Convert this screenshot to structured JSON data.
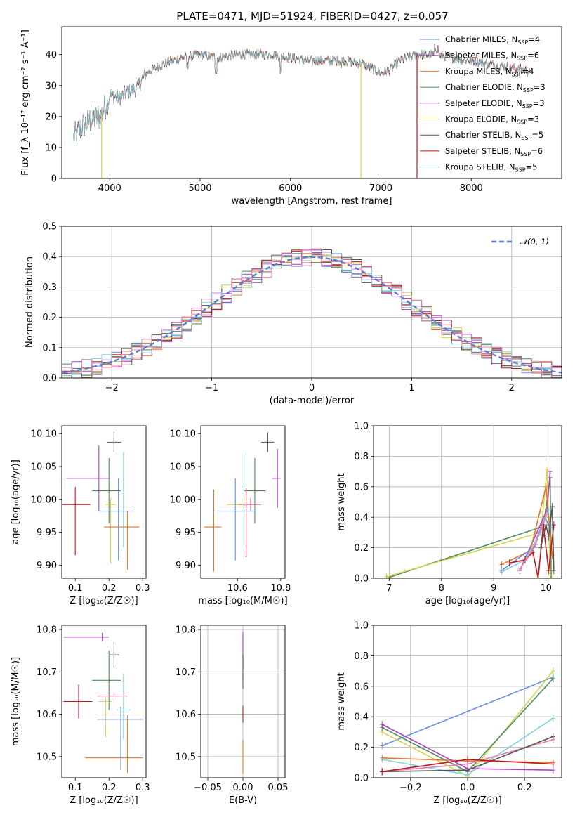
{
  "figure": {
    "title": "PLATE=0471, MJD=51924, FIBERID=0427, z=0.057"
  },
  "colors": {
    "Chabrier MILES": "#6a8fdc",
    "Salpeter MILES": "#9b59b6",
    "Kroupa MILES": "#e07b28",
    "Chabrier ELODIE": "#4f8a5f",
    "Salpeter ELODIE": "#b23ec2",
    "Kroupa ELODIE": "#d7d44a",
    "Chabrier STELIB": "#555555",
    "Salpeter STELIB": "#c0161d",
    "Kroupa STELIB": "#7fd3dc",
    "gauss": "#5b7fd6",
    "pink": "#e87fb3"
  },
  "chart_data": [
    {
      "id": "spectrum",
      "type": "line",
      "title": "PLATE=0471, MJD=51924, FIBERID=0427, z=0.057",
      "xlabel": "wavelength [Angstrom, rest frame]",
      "ylabel": "Flux [f_λ 10⁻¹⁷ erg cm⁻² s⁻¹ A⁻¹]",
      "xlim": [
        3470,
        9000
      ],
      "ylim": [
        0,
        49
      ],
      "xticks": [
        "4000",
        "5000",
        "6000",
        "7000",
        "8000"
      ],
      "yticks": [
        "0",
        "10",
        "20",
        "30",
        "40"
      ],
      "grid": false,
      "legend_position": "top-right",
      "legend": [
        {
          "name": "Chabrier MILES, N",
          "sub": "SSP",
          "suffix": "=4"
        },
        {
          "name": "Salpeter MILES, N",
          "sub": "SSP",
          "suffix": "=6"
        },
        {
          "name": "Kroupa MILES, N",
          "sub": "SSP",
          "suffix": "=4"
        },
        {
          "name": "Chabrier ELODIE, N",
          "sub": "SSP",
          "suffix": "=3"
        },
        {
          "name": "Salpeter ELODIE, N",
          "sub": "SSP",
          "suffix": "=3"
        },
        {
          "name": "Kroupa ELODIE, N",
          "sub": "SSP",
          "suffix": "=3"
        },
        {
          "name": "Chabrier STELIB, N",
          "sub": "SSP",
          "suffix": "=5"
        },
        {
          "name": "Salpeter STELIB, N",
          "sub": "SSP",
          "suffix": "=6"
        },
        {
          "name": "Kroupa STELIB, N",
          "sub": "SSP",
          "suffix": "=5"
        }
      ],
      "continuum": {
        "x": [
          3600,
          3700,
          3800,
          3900,
          4000,
          4100,
          4200,
          4300,
          4400,
          4600,
          4800,
          5000,
          5200,
          5400,
          5600,
          5800,
          6000,
          6200,
          6400,
          6600,
          6800,
          7000,
          7100,
          7200,
          7400,
          7600,
          7800,
          8000,
          8200,
          8400,
          8600,
          8700
        ],
        "y": [
          13,
          17,
          19,
          20,
          27,
          26,
          28,
          29,
          34,
          37,
          39,
          40,
          39,
          40,
          40,
          40,
          39,
          38,
          38,
          38,
          37,
          34,
          35,
          38,
          40,
          40,
          39,
          38,
          37,
          36,
          35,
          33
        ]
      },
      "spectra_end": [
        4,
        3,
        8,
        4,
        8,
        8,
        3,
        8,
        3
      ],
      "drops": [
        {
          "x": 3910,
          "series": "Kroupa ELODIE"
        },
        {
          "x": 6780,
          "series": "Kroupa ELODIE"
        },
        {
          "x": 7400,
          "series": "Salpeter STELIB"
        }
      ]
    },
    {
      "id": "residuals",
      "type": "step",
      "xlabel": "(data-model)/error",
      "ylabel": "Normed distribution",
      "xlim": [
        -2.5,
        2.5
      ],
      "ylim": [
        0,
        0.5
      ],
      "xticks": [
        "−2",
        "−1",
        "0",
        "1",
        "2"
      ],
      "yticks": [
        "0.0",
        "0.1",
        "0.2",
        "0.3",
        "0.4",
        "0.5"
      ],
      "grid": true,
      "bin_width": 0.1,
      "legend_position": "top-right",
      "legend": [
        {
          "name": "𝒩(0, 1)"
        }
      ],
      "gaussian": {
        "mu": 0,
        "sigma": 1
      }
    },
    {
      "id": "age-vs-Z",
      "type": "errorbar",
      "xlabel": "Z [log₁₀(Z/Z☉)]",
      "ylabel": "age  [log₁₀(age/yr)]",
      "xlim": [
        0.06,
        0.31
      ],
      "ylim": [
        9.88,
        10.112
      ],
      "xticks": [
        "0.1",
        "0.2",
        "0.3"
      ],
      "yticks": [
        "9.90",
        "9.95",
        "10.00",
        "10.05",
        "10.10"
      ],
      "grid": false,
      "points": [
        {
          "series": "Chabrier STELIB",
          "x": 0.215,
          "y": 10.087,
          "xerr": [
            0.022,
            0.022
          ],
          "yerr": [
            0.015,
            0.015
          ]
        },
        {
          "series": "Salpeter ELODIE",
          "x": 0.17,
          "y": 10.032,
          "xerr": [
            0.097,
            0.033
          ],
          "yerr": [
            0.05,
            0.05
          ]
        },
        {
          "series": "Chabrier ELODIE",
          "x": 0.2,
          "y": 10.013,
          "xerr": [
            0.05,
            0.035
          ],
          "yerr": [
            0.05,
            0.05
          ]
        },
        {
          "series": "Salpeter STELIB",
          "x": 0.1,
          "y": 9.992,
          "xerr": [
            0.04,
            0.045
          ],
          "yerr": [
            0.077,
            0.027
          ]
        },
        {
          "series": "Kroupa ELODIE",
          "x": 0.205,
          "y": 9.992,
          "xerr": [
            0.015,
            0.015
          ],
          "yerr": [
            0.09,
            0.01
          ]
        },
        {
          "series": "Kroupa STELIB",
          "x": 0.243,
          "y": 9.982,
          "xerr": [
            0.03,
            0.02
          ],
          "yerr": [
            0.055,
            0.09
          ]
        },
        {
          "series": "Chabrier MILES",
          "x": 0.228,
          "y": 9.982,
          "xerr": [
            0.06,
            0.045
          ],
          "yerr": [
            0.075,
            0.05
          ]
        },
        {
          "series": "Kroupa MILES",
          "x": 0.255,
          "y": 9.958,
          "xerr": [
            0.07,
            0.035
          ],
          "yerr": [
            0.065,
            0.025
          ]
        }
      ]
    },
    {
      "id": "age-vs-mass",
      "type": "errorbar",
      "xlabel": "mass [log₁₀(M/M☉)]",
      "ylabel": "",
      "xlim": [
        10.43,
        10.82
      ],
      "ylim": [
        9.88,
        10.112
      ],
      "xticks": [
        "10.6",
        "10.8"
      ],
      "yticks": [
        "9.90",
        "9.95",
        "10.00",
        "10.05",
        "10.10"
      ],
      "grid": false,
      "points": [
        {
          "series": "Chabrier STELIB",
          "x": 10.74,
          "y": 10.087,
          "xerr": [
            0.03,
            0.03
          ],
          "yerr": [
            0.015,
            0.015
          ]
        },
        {
          "series": "Salpeter ELODIE",
          "x": 10.785,
          "y": 10.032,
          "xerr": [
            0.025,
            0.015
          ],
          "yerr": [
            0.045,
            0.045
          ]
        },
        {
          "series": "Chabrier ELODIE",
          "x": 10.68,
          "y": 10.013,
          "xerr": [
            0.05,
            0.05
          ],
          "yerr": [
            0.05,
            0.05
          ]
        },
        {
          "series": "Salpeter STELIB",
          "x": 10.64,
          "y": 9.992,
          "xerr": [
            0.04,
            0.04
          ],
          "yerr": [
            0.08,
            0.025
          ]
        },
        {
          "series": "Kroupa ELODIE",
          "x": 10.62,
          "y": 9.992,
          "xerr": [
            0.07,
            0.07
          ],
          "yerr": [
            0.01,
            0.01
          ]
        },
        {
          "series": "pink",
          "x": 10.66,
          "y": 9.992,
          "xerr": [
            0.05,
            0.05
          ],
          "yerr": [
            0.01,
            0.01
          ]
        },
        {
          "series": "Kroupa STELIB",
          "x": 10.63,
          "y": 9.982,
          "xerr": [
            0.05,
            0.05
          ],
          "yerr": [
            0.055,
            0.09
          ]
        },
        {
          "series": "Chabrier MILES",
          "x": 10.59,
          "y": 9.982,
          "xerr": [
            0.085,
            0.085
          ],
          "yerr": [
            0.075,
            0.05
          ]
        },
        {
          "series": "Kroupa MILES",
          "x": 10.49,
          "y": 9.958,
          "xerr": [
            0.045,
            0.035
          ],
          "yerr": [
            0.068,
            0.057
          ]
        }
      ]
    },
    {
      "id": "weight-vs-age",
      "type": "line",
      "xlabel": "age  [log₁₀(age/yr)]",
      "ylabel": "mass weight",
      "xlim": [
        6.7,
        10.3
      ],
      "ylim": [
        0,
        1
      ],
      "xticks": [
        "7",
        "8",
        "9",
        "10"
      ],
      "yticks": [
        "0.0",
        "0.2",
        "0.4",
        "0.6",
        "0.8",
        "1.0"
      ],
      "grid": true,
      "series": [
        {
          "name": "Chabrier ELODIE",
          "x": [
            6.95,
            9.95,
            10.08,
            10.1
          ],
          "y": [
            0.0,
            0.34,
            0.66,
            0.0
          ]
        },
        {
          "name": "Kroupa ELODIE",
          "x": [
            6.95,
            9.9,
            10.02,
            10.08
          ],
          "y": [
            0.01,
            0.3,
            0.71,
            0.02
          ]
        },
        {
          "name": "Salpeter ELODIE",
          "x": [
            9.5,
            10.02,
            10.08
          ],
          "y": [
            0.05,
            0.45,
            0.7
          ]
        },
        {
          "name": "Kroupa MILES",
          "x": [
            9.15,
            9.7,
            10.0,
            10.12
          ],
          "y": [
            0.09,
            0.18,
            0.6,
            0.15
          ]
        },
        {
          "name": "Chabrier MILES",
          "x": [
            9.15,
            9.75,
            9.98,
            10.08
          ],
          "y": [
            0.05,
            0.2,
            0.4,
            0.33
          ]
        },
        {
          "name": "Kroupa STELIB",
          "x": [
            9.15,
            9.6,
            9.9,
            10.05
          ],
          "y": [
            0.04,
            0.12,
            0.3,
            0.45
          ]
        },
        {
          "name": "Salpeter STELIB",
          "x": [
            9.3,
            9.6,
            9.75,
            9.85,
            9.95,
            10.05,
            10.15
          ],
          "y": [
            0.1,
            0.12,
            0.17,
            0.0,
            0.35,
            0.05,
            0.35
          ]
        },
        {
          "name": "Chabrier STELIB",
          "x": [
            9.9,
            10.0,
            10.05,
            10.12,
            10.15
          ],
          "y": [
            0.2,
            0.35,
            0.27,
            0.47,
            0.05
          ]
        },
        {
          "name": "pink",
          "x": [
            9.5,
            9.8,
            10.0
          ],
          "y": [
            0.06,
            0.22,
            0.42
          ]
        }
      ]
    },
    {
      "id": "mass-vs-Z",
      "type": "errorbar",
      "xlabel": "Z [log₁₀(Z/Z☉)]",
      "ylabel": "mass [log₁₀(M/M☉)]",
      "xlim": [
        0.06,
        0.31
      ],
      "ylim": [
        10.45,
        10.81
      ],
      "xticks": [
        "0.1",
        "0.2",
        "0.3"
      ],
      "yticks": [
        "10.5",
        "10.6",
        "10.7",
        "10.8"
      ],
      "grid": false,
      "points": [
        {
          "series": "Salpeter ELODIE",
          "x": 0.18,
          "y": 10.782,
          "xerr": [
            0.115,
            0.02
          ],
          "yerr": [
            0.01,
            0.01
          ]
        },
        {
          "series": "Chabrier STELIB",
          "x": 0.215,
          "y": 10.74,
          "xerr": [
            0.015,
            0.015
          ],
          "yerr": [
            0.03,
            0.03
          ]
        },
        {
          "series": "Chabrier ELODIE",
          "x": 0.2,
          "y": 10.68,
          "xerr": [
            0.05,
            0.035
          ],
          "yerr": [
            0.07,
            0.07
          ]
        },
        {
          "series": "pink",
          "x": 0.215,
          "y": 10.643,
          "xerr": [
            0.05,
            0.04
          ],
          "yerr": [
            0.01,
            0.01
          ]
        },
        {
          "series": "Salpeter STELIB",
          "x": 0.11,
          "y": 10.63,
          "xerr": [
            0.045,
            0.04
          ],
          "yerr": [
            0.04,
            0.04
          ]
        },
        {
          "series": "Kroupa ELODIE",
          "x": 0.19,
          "y": 10.63,
          "xerr": [
            0.02,
            0.02
          ],
          "yerr": [
            0.085,
            0.01
          ]
        },
        {
          "series": "Kroupa STELIB",
          "x": 0.243,
          "y": 10.61,
          "xerr": [
            0.02,
            0.02
          ],
          "yerr": [
            0.07,
            0.085
          ]
        },
        {
          "series": "Chabrier MILES",
          "x": 0.235,
          "y": 10.588,
          "xerr": [
            0.07,
            0.065
          ],
          "yerr": [
            0.12,
            0.03
          ]
        },
        {
          "series": "Kroupa MILES",
          "x": 0.255,
          "y": 10.497,
          "xerr": [
            0.125,
            0.045
          ],
          "yerr": [
            0.035,
            0.1
          ]
        }
      ]
    },
    {
      "id": "mass-vs-EBV",
      "type": "errorbar",
      "xlabel": "E(B-V)",
      "ylabel": "",
      "xlim": [
        -0.06,
        0.06
      ],
      "ylim": [
        10.45,
        10.81
      ],
      "xticks": [
        "−0.05",
        "0.00",
        "0.05"
      ],
      "yticks": [
        "10.5",
        "10.6",
        "10.7",
        "10.8"
      ],
      "grid": true,
      "points": [
        {
          "series": "Salpeter ELODIE",
          "x": 0.0,
          "y": 10.74,
          "xerr": [
            0,
            0
          ],
          "yerr": [
            0.055,
            0.055
          ]
        },
        {
          "series": "Chabrier STELIB",
          "x": 0.0,
          "y": 10.7,
          "xerr": [
            0,
            0
          ],
          "yerr": [
            0.04,
            0.04
          ]
        },
        {
          "series": "Salpeter STELIB",
          "x": 0.0,
          "y": 10.6,
          "xerr": [
            0,
            0
          ],
          "yerr": [
            0.02,
            0.02
          ]
        },
        {
          "series": "Kroupa MILES",
          "x": 0.0,
          "y": 10.5,
          "xerr": [
            0,
            0
          ],
          "yerr": [
            0.04,
            0.04
          ]
        }
      ]
    },
    {
      "id": "weight-vs-Z",
      "type": "line",
      "xlabel": "Z [log₁₀(Z/Z☉)]",
      "ylabel": "mass weight",
      "xlim": [
        -0.33,
        0.33
      ],
      "ylim": [
        0,
        1
      ],
      "xticks": [
        "−0.2",
        "0.0",
        "0.2"
      ],
      "yticks": [
        "0.0",
        "0.2",
        "0.4",
        "0.6",
        "0.8",
        "1.0"
      ],
      "grid": true,
      "series": [
        {
          "name": "Chabrier MILES",
          "x": [
            -0.3,
            0.3
          ],
          "y": [
            0.21,
            0.66
          ]
        },
        {
          "name": "Kroupa ELODIE",
          "x": [
            -0.3,
            0.0,
            0.3
          ],
          "y": [
            0.3,
            0.01,
            0.7
          ]
        },
        {
          "name": "Chabrier ELODIE",
          "x": [
            -0.3,
            0.0,
            0.3
          ],
          "y": [
            0.33,
            0.04,
            0.65
          ]
        },
        {
          "name": "Kroupa STELIB",
          "x": [
            -0.3,
            0.0,
            0.3
          ],
          "y": [
            0.12,
            0.02,
            0.39
          ]
        },
        {
          "name": "Kroupa MILES",
          "x": [
            -0.3,
            0.0,
            0.3
          ],
          "y": [
            0.13,
            0.11,
            0.1
          ]
        },
        {
          "name": "pink",
          "x": [
            -0.3,
            0.0,
            0.3
          ],
          "y": [
            0.04,
            0.09,
            0.25
          ]
        },
        {
          "name": "Chabrier STELIB",
          "x": [
            -0.3,
            0.0,
            0.3
          ],
          "y": [
            0.04,
            0.05,
            0.27
          ]
        },
        {
          "name": "Salpeter STELIB",
          "x": [
            -0.3,
            0.0,
            0.3
          ],
          "y": [
            0.04,
            0.12,
            0.09
          ]
        },
        {
          "name": "Salpeter ELODIE",
          "x": [
            -0.3,
            0.0,
            0.3
          ],
          "y": [
            0.35,
            0.06,
            0.05
          ]
        }
      ]
    }
  ]
}
